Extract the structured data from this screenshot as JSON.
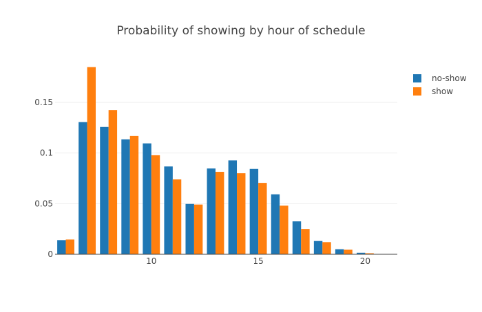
{
  "chart_data": {
    "type": "bar",
    "title": "Probability of showing by hour of schedule",
    "xlabel": "",
    "ylabel": "",
    "x": [
      6,
      7,
      8,
      9,
      10,
      11,
      12,
      13,
      14,
      15,
      16,
      17,
      18,
      19,
      20,
      21
    ],
    "series": [
      {
        "name": "no-show",
        "color": "#1f77b4",
        "values": [
          0.014,
          0.1305,
          0.1257,
          0.1135,
          0.1095,
          0.0867,
          0.0497,
          0.0847,
          0.0927,
          0.0843,
          0.0592,
          0.0325,
          0.0131,
          0.005,
          0.0015,
          0.0001
        ]
      },
      {
        "name": "show",
        "color": "#ff7f0e",
        "values": [
          0.0146,
          0.1848,
          0.1424,
          0.1168,
          0.0978,
          0.0739,
          0.0491,
          0.0814,
          0.08,
          0.0705,
          0.048,
          0.025,
          0.012,
          0.0045,
          0.001,
          0.0001
        ]
      }
    ],
    "x_ticks": [
      10,
      15,
      20
    ],
    "x_tick_labels": [
      "10",
      "15",
      "20"
    ],
    "y_ticks": [
      0,
      0.05,
      0.1,
      0.15
    ],
    "y_tick_labels": [
      "0",
      "0.05",
      "0.1",
      "0.15"
    ],
    "xlim": [
      5.5,
      21.5
    ],
    "ylim": [
      0,
      0.19
    ],
    "grid": true,
    "legend_position": "top-right"
  }
}
